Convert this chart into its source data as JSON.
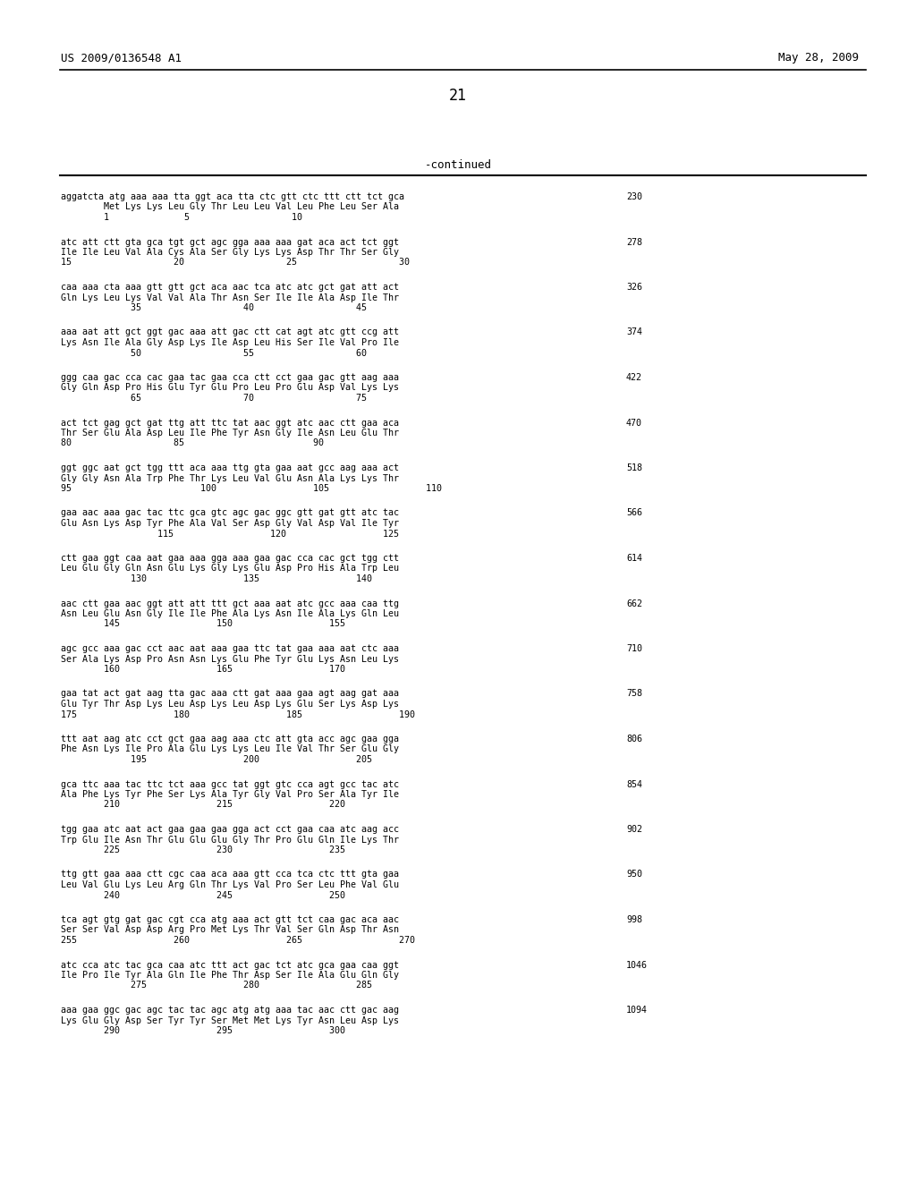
{
  "header_left": "US 2009/0136548 A1",
  "header_right": "May 28, 2009",
  "page_number": "21",
  "continued_label": "-continued",
  "background_color": "#ffffff",
  "text_color": "#000000",
  "blocks": [
    {
      "dna": "aggatcta atg aaa aaa tta ggt aca tta ctc gtt ctc ttt ctt tct gca",
      "aa": "        Met Lys Lys Leu Gly Thr Leu Leu Val Leu Phe Leu Ser Ala",
      "nums": "        1              5                   10",
      "number": "230"
    },
    {
      "dna": "atc att ctt gta gca tgt gct agc gga aaa aaa gat aca act tct ggt",
      "aa": "Ile Ile Leu Val Ala Cys Ala Ser Gly Lys Lys Asp Thr Thr Ser Gly",
      "nums": "15                   20                   25                   30",
      "number": "278"
    },
    {
      "dna": "caa aaa cta aaa gtt gtt gct aca aac tca atc atc gct gat att act",
      "aa": "Gln Lys Leu Lys Val Val Ala Thr Asn Ser Ile Ile Ala Asp Ile Thr",
      "nums": "             35                   40                   45",
      "number": "326"
    },
    {
      "dna": "aaa aat att gct ggt gac aaa att gac ctt cat agt atc gtt ccg att",
      "aa": "Lys Asn Ile Ala Gly Asp Lys Ile Asp Leu His Ser Ile Val Pro Ile",
      "nums": "             50                   55                   60",
      "number": "374"
    },
    {
      "dna": "ggg caa gac cca cac gaa tac gaa cca ctt cct gaa gac gtt aag aaa",
      "aa": "Gly Gln Asp Pro His Glu Tyr Glu Pro Leu Pro Glu Asp Val Lys Lys",
      "nums": "             65                   70                   75",
      "number": "422"
    },
    {
      "dna": "act tct gag gct gat ttg att ttc tat aac ggt atc aac ctt gaa aca",
      "aa": "Thr Ser Glu Ala Asp Leu Ile Phe Tyr Asn Gly Ile Asn Leu Glu Thr",
      "nums": "80                   85                        90",
      "number": "470"
    },
    {
      "dna": "ggt ggc aat gct tgg ttt aca aaa ttg gta gaa aat gcc aag aaa act",
      "aa": "Gly Gly Asn Ala Trp Phe Thr Lys Leu Val Glu Asn Ala Lys Lys Thr",
      "nums": "95                        100                  105                  110",
      "number": "518"
    },
    {
      "dna": "gaa aac aaa gac tac ttc gca gtc agc gac ggc gtt gat gtt atc tac",
      "aa": "Glu Asn Lys Asp Tyr Phe Ala Val Ser Asp Gly Val Asp Val Ile Tyr",
      "nums": "                  115                  120                  125",
      "number": "566"
    },
    {
      "dna": "ctt gaa ggt caa aat gaa aaa gga aaa gaa gac cca cac gct tgg ctt",
      "aa": "Leu Glu Gly Gln Asn Glu Lys Gly Lys Glu Asp Pro His Ala Trp Leu",
      "nums": "             130                  135                  140",
      "number": "614"
    },
    {
      "dna": "aac ctt gaa aac ggt att att ttt gct aaa aat atc gcc aaa caa ttg",
      "aa": "Asn Leu Glu Asn Gly Ile Ile Phe Ala Lys Asn Ile Ala Lys Gln Leu",
      "nums": "        145                  150                  155",
      "number": "662"
    },
    {
      "dna": "agc gcc aaa gac cct aac aat aaa gaa ttc tat gaa aaa aat ctc aaa",
      "aa": "Ser Ala Lys Asp Pro Asn Asn Lys Glu Phe Tyr Glu Lys Asn Leu Lys",
      "nums": "        160                  165                  170",
      "number": "710"
    },
    {
      "dna": "gaa tat act gat aag tta gac aaa ctt gat aaa gaa agt aag gat aaa",
      "aa": "Glu Tyr Thr Asp Lys Leu Asp Lys Leu Asp Lys Glu Ser Lys Asp Lys",
      "nums": "175                  180                  185                  190",
      "number": "758"
    },
    {
      "dna": "ttt aat aag atc cct gct gaa aag aaa ctc att gta acc agc gaa gga",
      "aa": "Phe Asn Lys Ile Pro Ala Glu Lys Lys Leu Ile Val Thr Ser Glu Gly",
      "nums": "             195                  200                  205",
      "number": "806"
    },
    {
      "dna": "gca ttc aaa tac ttc tct aaa gcc tat ggt gtc cca agt gcc tac atc",
      "aa": "Ala Phe Lys Tyr Phe Ser Lys Ala Tyr Gly Val Pro Ser Ala Tyr Ile",
      "nums": "        210                  215                  220",
      "number": "854"
    },
    {
      "dna": "tgg gaa atc aat act gaa gaa gaa gga act cct gaa caa atc aag acc",
      "aa": "Trp Glu Ile Asn Thr Glu Glu Glu Gly Thr Pro Glu Gln Ile Lys Thr",
      "nums": "        225                  230                  235",
      "number": "902"
    },
    {
      "dna": "ttg gtt gaa aaa ctt cgc caa aca aaa gtt cca tca ctc ttt gta gaa",
      "aa": "Leu Val Glu Lys Leu Arg Gln Thr Lys Val Pro Ser Leu Phe Val Glu",
      "nums": "        240                  245                  250",
      "number": "950"
    },
    {
      "dna": "tca agt gtg gat gac cgt cca atg aaa act gtt tct caa gac aca aac",
      "aa": "Ser Ser Val Asp Asp Arg Pro Met Lys Thr Val Ser Gln Asp Thr Asn",
      "nums": "255                  260                  265                  270",
      "number": "998"
    },
    {
      "dna": "atc cca atc tac gca caa atc ttt act gac tct atc gca gaa caa ggt",
      "aa": "Ile Pro Ile Tyr Ala Gln Ile Phe Thr Asp Ser Ile Ala Glu Gln Gly",
      "nums": "             275                  280                  285",
      "number": "1046"
    },
    {
      "dna": "aaa gaa ggc gac agc tac tac agc atg atg aaa tac aac ctt gac aag",
      "aa": "Lys Glu Gly Asp Ser Tyr Tyr Ser Met Met Lys Tyr Asn Leu Asp Lys",
      "nums": "        290                  295                  300",
      "number": "1094"
    }
  ]
}
